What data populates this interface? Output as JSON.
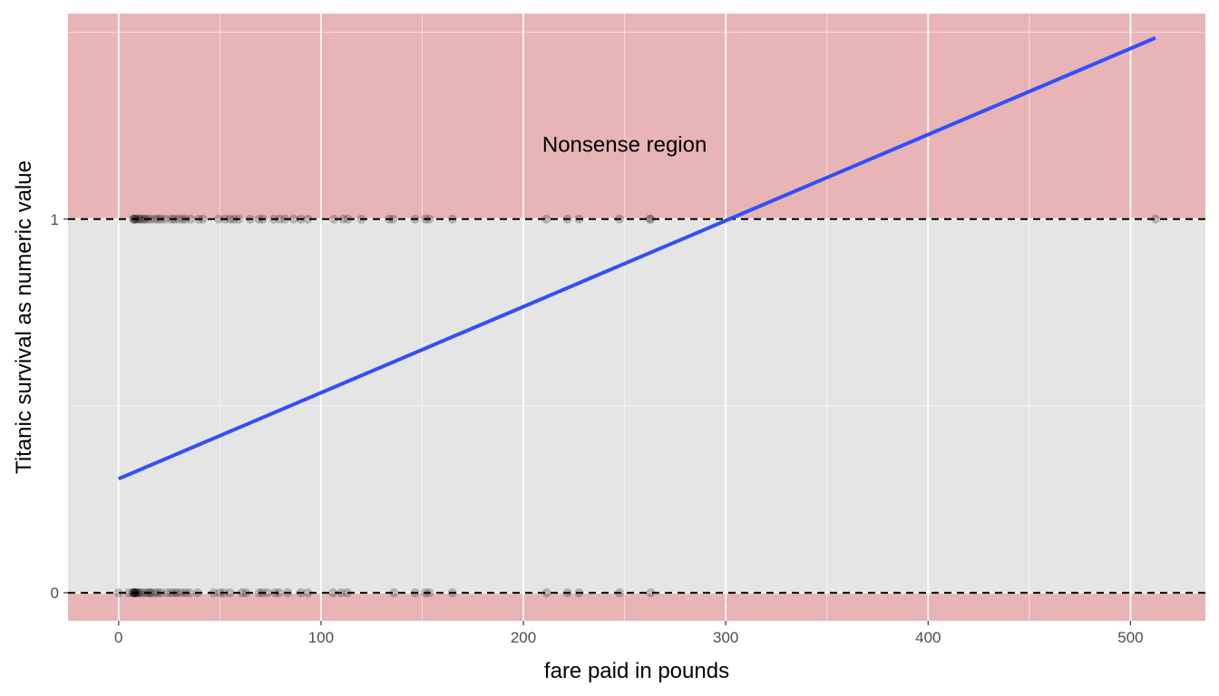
{
  "chart_data": {
    "type": "scatter",
    "xlabel": "fare paid in pounds",
    "ylabel": "Titanic survival as numeric value",
    "xlim": [
      -25,
      537
    ],
    "ylim": [
      -0.075,
      1.55
    ],
    "x_ticks": [
      0,
      100,
      200,
      300,
      400,
      500
    ],
    "x_tick_labels": [
      "0",
      "100",
      "200",
      "300",
      "400",
      "500"
    ],
    "y_ticks": [
      0,
      1
    ],
    "y_tick_labels": [
      "0",
      "1"
    ],
    "grid": true,
    "annotation": {
      "text": "Nonsense region",
      "x": 250,
      "y": 1.2
    },
    "reference_lines": [
      0,
      1
    ],
    "shaded_regions": [
      {
        "ymin": 1,
        "ymax": 1.55,
        "color": "#e8b4b6"
      },
      {
        "ymin": -0.075,
        "ymax": 0,
        "color": "#e8b4b6"
      }
    ],
    "series": [
      {
        "type": "point",
        "values": [
          [
            0,
            0
          ],
          [
            5,
            0
          ],
          [
            7,
            0
          ],
          [
            7.5,
            0
          ],
          [
            7.75,
            0
          ],
          [
            7.9,
            0
          ],
          [
            8.05,
            0
          ],
          [
            8.5,
            0
          ],
          [
            9,
            0
          ],
          [
            9.5,
            0
          ],
          [
            10.5,
            0
          ],
          [
            11.5,
            0
          ],
          [
            13,
            0
          ],
          [
            14.5,
            0
          ],
          [
            15.5,
            0
          ],
          [
            16.1,
            0
          ],
          [
            18,
            0
          ],
          [
            19.5,
            0
          ],
          [
            21,
            0
          ],
          [
            24,
            0
          ],
          [
            26,
            0
          ],
          [
            27.7,
            0
          ],
          [
            29,
            0
          ],
          [
            31,
            0
          ],
          [
            33,
            0
          ],
          [
            35,
            0
          ],
          [
            39,
            0
          ],
          [
            46.9,
            0
          ],
          [
            50,
            0
          ],
          [
            52,
            0
          ],
          [
            55,
            0
          ],
          [
            61,
            0
          ],
          [
            63,
            0
          ],
          [
            69.5,
            0
          ],
          [
            71,
            0
          ],
          [
            73.5,
            0
          ],
          [
            77.3,
            0
          ],
          [
            79.2,
            0
          ],
          [
            83.5,
            0
          ],
          [
            90,
            0
          ],
          [
            93.5,
            0
          ],
          [
            106,
            0
          ],
          [
            110,
            0
          ],
          [
            113,
            0
          ],
          [
            136,
            0
          ],
          [
            146.5,
            0
          ],
          [
            151.5,
            0
          ],
          [
            153.5,
            0
          ],
          [
            164.9,
            0
          ],
          [
            211.5,
            0
          ],
          [
            221.8,
            0
          ],
          [
            227.5,
            0
          ],
          [
            247.5,
            0
          ],
          [
            263,
            0
          ],
          [
            7.2,
            1
          ],
          [
            7.75,
            1
          ],
          [
            8,
            1
          ],
          [
            8.5,
            1
          ],
          [
            9.5,
            1
          ],
          [
            10.5,
            1
          ],
          [
            11.1,
            1
          ],
          [
            12.5,
            1
          ],
          [
            13,
            1
          ],
          [
            14.5,
            1
          ],
          [
            16,
            1
          ],
          [
            18,
            1
          ],
          [
            19.5,
            1
          ],
          [
            21,
            1
          ],
          [
            23,
            1
          ],
          [
            26,
            1
          ],
          [
            27.5,
            1
          ],
          [
            29.5,
            1
          ],
          [
            31.5,
            1
          ],
          [
            33,
            1
          ],
          [
            35.5,
            1
          ],
          [
            39.6,
            1
          ],
          [
            41.6,
            1
          ],
          [
            49.5,
            1
          ],
          [
            52.6,
            1
          ],
          [
            55,
            1
          ],
          [
            57,
            1
          ],
          [
            59.4,
            1
          ],
          [
            65,
            1
          ],
          [
            69.3,
            1
          ],
          [
            71.3,
            1
          ],
          [
            76.7,
            1
          ],
          [
            79.6,
            1
          ],
          [
            82.2,
            1
          ],
          [
            86.5,
            1
          ],
          [
            90,
            1
          ],
          [
            93.5,
            1
          ],
          [
            106.4,
            1
          ],
          [
            110.9,
            1
          ],
          [
            113.3,
            1
          ],
          [
            120,
            1
          ],
          [
            133.7,
            1
          ],
          [
            135.6,
            1
          ],
          [
            146.5,
            1
          ],
          [
            151.6,
            1
          ],
          [
            153.5,
            1
          ],
          [
            164.9,
            1
          ],
          [
            211.3,
            1
          ],
          [
            221.8,
            1
          ],
          [
            227.5,
            1
          ],
          [
            247.5,
            1
          ],
          [
            262.4,
            1
          ],
          [
            263,
            1
          ],
          [
            512.3,
            1
          ]
        ]
      },
      {
        "type": "line",
        "x": [
          0,
          512.33
        ],
        "y": [
          0.305,
          1.485
        ]
      }
    ]
  }
}
